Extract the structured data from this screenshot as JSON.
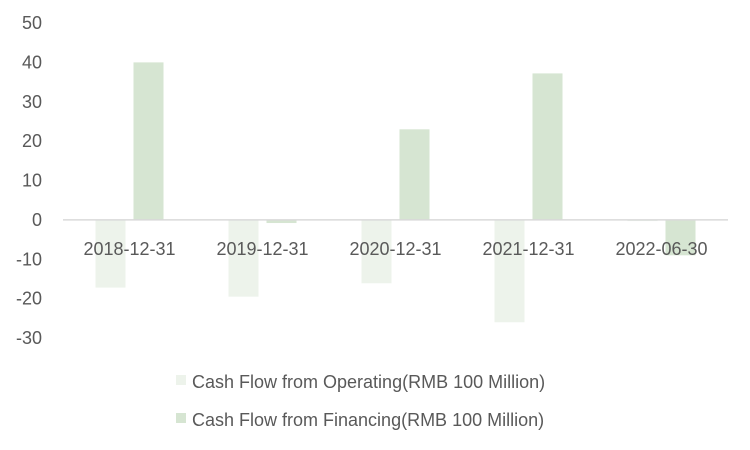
{
  "chart_data": {
    "type": "bar",
    "categories": [
      "2018-12-31",
      "2019-12-31",
      "2020-12-31",
      "2021-12-31",
      "2022-06-30"
    ],
    "series": [
      {
        "name": "Cash Flow from Operating(RMB 100 Million)",
        "color": "#edf3eb",
        "values": [
          -17.2,
          -19.5,
          -16.1,
          -26.0,
          -0.3
        ]
      },
      {
        "name": "Cash Flow from Financing(RMB 100 Million)",
        "color": "#d6e5d2",
        "values": [
          40.0,
          -0.8,
          23.0,
          37.2,
          -9.0
        ]
      }
    ],
    "ylim": [
      -30,
      50
    ],
    "yticks": [
      -30,
      -20,
      -10,
      0,
      10,
      20,
      30,
      40,
      50
    ],
    "grid": false,
    "legend_position": "bottom",
    "axis_color": "#d9d9d9"
  }
}
